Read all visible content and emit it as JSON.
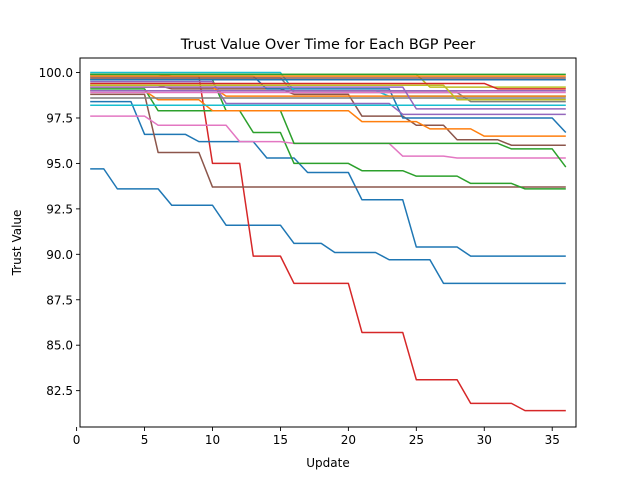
{
  "chart_data": {
    "type": "line",
    "title": "Trust Value Over Time for Each BGP Peer",
    "xlabel": "Update",
    "ylabel": "Trust Value",
    "xlim": [
      0.25,
      36.75
    ],
    "ylim": [
      80.5,
      100.8
    ],
    "xticks": [
      0,
      5,
      10,
      15,
      20,
      25,
      30,
      35
    ],
    "xtick_labels": [
      "0",
      "5",
      "10",
      "15",
      "20",
      "25",
      "30",
      "35"
    ],
    "yticks": [
      82.5,
      85.0,
      87.5,
      90.0,
      92.5,
      95.0,
      97.5,
      100.0
    ],
    "ytick_labels": [
      "82.5",
      "85.0",
      "87.5",
      "90.0",
      "92.5",
      "95.0",
      "97.5",
      "100.0"
    ],
    "grid": false,
    "legend": "none",
    "series": [
      {
        "color": "#1f77b4",
        "values": [
          94.7,
          94.7,
          93.6,
          93.6,
          93.6,
          93.6,
          92.7,
          92.7,
          92.7,
          92.7,
          91.6,
          91.6,
          91.6,
          91.6,
          91.6,
          90.6,
          90.6,
          90.6,
          90.1,
          90.1,
          90.1,
          90.1,
          89.7,
          89.7,
          89.7,
          89.7,
          88.4,
          88.4,
          88.4,
          88.4,
          88.4,
          88.4,
          88.4,
          88.4,
          88.4,
          88.4
        ]
      },
      {
        "color": "#d62728",
        "values": [
          99.9,
          99.9,
          99.9,
          99.9,
          99.9,
          99.9,
          99.8,
          99.8,
          99.8,
          95.0,
          95.0,
          95.0,
          89.9,
          89.9,
          89.9,
          88.4,
          88.4,
          88.4,
          88.4,
          88.4,
          85.7,
          85.7,
          85.7,
          85.7,
          83.1,
          83.1,
          83.1,
          83.1,
          81.8,
          81.8,
          81.8,
          81.8,
          81.4,
          81.4,
          81.4,
          81.4
        ]
      },
      {
        "color": "#1f77b4",
        "values": [
          98.4,
          98.4,
          98.4,
          98.4,
          96.6,
          96.6,
          96.6,
          96.6,
          96.2,
          96.2,
          96.2,
          96.2,
          96.2,
          95.3,
          95.3,
          95.3,
          94.5,
          94.5,
          94.5,
          94.5,
          93.0,
          93.0,
          93.0,
          93.0,
          90.4,
          90.4,
          90.4,
          90.4,
          89.9,
          89.9,
          89.9,
          89.9,
          89.9,
          89.9,
          89.9,
          89.9
        ]
      },
      {
        "color": "#8c564b",
        "values": [
          98.8,
          98.8,
          98.8,
          98.8,
          98.8,
          95.6,
          95.6,
          95.6,
          95.6,
          93.7,
          93.7,
          93.7,
          93.7,
          93.7,
          93.7,
          93.7,
          93.7,
          93.7,
          93.7,
          93.7,
          93.7,
          93.7,
          93.7,
          93.7,
          93.7,
          93.7,
          93.7,
          93.7,
          93.7,
          93.7,
          93.7,
          93.7,
          93.7,
          93.7,
          93.7,
          93.7
        ]
      },
      {
        "color": "#2ca02c",
        "values": [
          99.1,
          99.1,
          99.1,
          99.1,
          99.1,
          97.9,
          97.9,
          97.9,
          97.9,
          97.9,
          97.9,
          97.9,
          96.7,
          96.7,
          96.7,
          95.0,
          95.0,
          95.0,
          95.0,
          95.0,
          94.6,
          94.6,
          94.6,
          94.6,
          94.3,
          94.3,
          94.3,
          94.3,
          93.9,
          93.9,
          93.9,
          93.9,
          93.6,
          93.6,
          93.6,
          93.6
        ]
      },
      {
        "color": "#e377c2",
        "values": [
          97.6,
          97.6,
          97.6,
          97.6,
          97.6,
          97.1,
          97.1,
          97.1,
          97.1,
          97.1,
          97.1,
          96.2,
          96.2,
          96.2,
          96.2,
          96.1,
          96.1,
          96.1,
          96.1,
          96.1,
          96.1,
          96.1,
          96.1,
          95.4,
          95.4,
          95.4,
          95.4,
          95.3,
          95.3,
          95.3,
          95.3,
          95.3,
          95.3,
          95.3,
          95.3,
          95.3
        ]
      },
      {
        "color": "#2ca02c",
        "values": [
          99.6,
          99.6,
          99.6,
          99.6,
          99.6,
          99.6,
          99.6,
          99.6,
          99.6,
          99.6,
          97.9,
          97.9,
          97.9,
          97.9,
          97.9,
          96.1,
          96.1,
          96.1,
          96.1,
          96.1,
          96.1,
          96.1,
          96.1,
          96.1,
          96.1,
          96.1,
          96.1,
          96.1,
          96.1,
          96.1,
          96.1,
          95.8,
          95.8,
          95.8,
          95.8,
          94.8
        ]
      },
      {
        "color": "#8c564b",
        "values": [
          99.3,
          99.3,
          99.3,
          99.3,
          99.3,
          99.3,
          99.1,
          99.1,
          99.1,
          99.1,
          99.1,
          99.1,
          99.1,
          99.1,
          99.1,
          98.8,
          98.8,
          98.8,
          98.8,
          98.8,
          97.6,
          97.6,
          97.6,
          97.6,
          97.1,
          97.1,
          97.1,
          96.3,
          96.3,
          96.3,
          96.3,
          96.0,
          96.0,
          96.0,
          96.0,
          96.0
        ]
      },
      {
        "color": "#ff7f0e",
        "values": [
          99.0,
          99.0,
          99.0,
          99.0,
          99.0,
          98.5,
          98.5,
          98.5,
          98.5,
          97.9,
          97.9,
          97.9,
          97.9,
          97.9,
          97.9,
          97.9,
          97.9,
          97.9,
          97.9,
          97.9,
          97.3,
          97.3,
          97.3,
          97.3,
          97.3,
          96.9,
          96.9,
          96.9,
          96.9,
          96.5,
          96.5,
          96.5,
          96.5,
          96.5,
          96.5,
          96.5
        ]
      },
      {
        "color": "#1f77b4",
        "values": [
          99.8,
          99.8,
          99.8,
          99.8,
          99.8,
          99.8,
          99.8,
          99.8,
          99.8,
          99.8,
          99.8,
          99.8,
          99.8,
          99.1,
          99.1,
          99.1,
          99.1,
          99.1,
          99.1,
          99.1,
          99.1,
          99.1,
          99.1,
          97.5,
          97.5,
          97.5,
          97.5,
          97.5,
          97.5,
          97.5,
          97.5,
          97.5,
          97.5,
          97.5,
          97.5,
          96.7
        ]
      },
      {
        "color": "#9467bd",
        "values": [
          99.5,
          99.5,
          99.5,
          99.5,
          99.5,
          99.5,
          99.5,
          99.5,
          99.5,
          99.5,
          98.3,
          98.3,
          98.3,
          98.3,
          98.3,
          98.3,
          98.3,
          98.3,
          98.3,
          98.3,
          98.3,
          98.3,
          98.3,
          97.7,
          97.7,
          97.7,
          97.7,
          97.7,
          97.7,
          97.7,
          97.7,
          97.7,
          97.7,
          97.7,
          97.7,
          97.7
        ]
      },
      {
        "color": "#7f7f7f",
        "values": [
          99.7,
          99.7,
          99.7,
          99.7,
          99.7,
          99.7,
          99.7,
          99.7,
          99.7,
          99.7,
          99.7,
          99.7,
          99.7,
          99.7,
          99.7,
          98.9,
          98.9,
          98.9,
          98.9,
          98.9,
          98.9,
          98.9,
          98.9,
          98.9,
          98.9,
          98.9,
          98.9,
          98.9,
          98.4,
          98.4,
          98.4,
          98.4,
          98.4,
          98.4,
          98.4,
          98.4
        ]
      },
      {
        "color": "#bcbd22",
        "values": [
          99.9,
          99.9,
          99.9,
          99.9,
          99.9,
          99.9,
          99.9,
          99.9,
          99.9,
          99.9,
          99.9,
          99.9,
          99.9,
          99.9,
          99.9,
          99.9,
          99.9,
          99.9,
          99.9,
          99.9,
          99.9,
          99.9,
          99.9,
          99.9,
          99.9,
          99.2,
          99.2,
          99.2,
          99.2,
          99.2,
          99.2,
          99.2,
          99.2,
          99.2,
          99.2,
          99.2
        ]
      },
      {
        "color": "#17becf",
        "values": [
          100.0,
          100.0,
          100.0,
          100.0,
          100.0,
          100.0,
          100.0,
          100.0,
          100.0,
          100.0,
          100.0,
          100.0,
          100.0,
          100.0,
          100.0,
          99.0,
          99.0,
          99.0,
          99.0,
          99.0,
          99.0,
          99.0,
          98.7,
          98.7,
          98.7,
          98.7,
          98.7,
          98.7,
          98.7,
          98.7,
          98.7,
          98.7,
          98.7,
          98.7,
          98.7,
          98.7
        ]
      },
      {
        "color": "#2ca02c",
        "values": [
          99.9,
          99.9,
          99.9,
          99.9,
          99.9,
          99.9,
          99.9,
          99.9,
          99.9,
          99.9,
          99.9,
          99.9,
          99.9,
          99.9,
          99.9,
          99.9,
          99.9,
          99.9,
          99.9,
          99.9,
          99.9,
          99.9,
          99.9,
          99.9,
          99.9,
          99.9,
          99.9,
          99.9,
          99.9,
          99.9,
          99.9,
          99.9,
          99.9,
          99.9,
          99.9,
          99.9
        ]
      },
      {
        "color": "#d62728",
        "values": [
          99.4,
          99.4,
          99.4,
          99.4,
          99.4,
          99.4,
          99.4,
          99.4,
          99.4,
          99.4,
          99.4,
          99.4,
          99.4,
          99.4,
          99.4,
          99.4,
          99.4,
          99.4,
          99.4,
          99.4,
          99.4,
          99.4,
          99.4,
          99.4,
          99.4,
          99.4,
          99.4,
          99.4,
          99.4,
          99.4,
          99.1,
          99.1,
          99.1,
          99.1,
          99.1,
          99.1
        ]
      },
      {
        "color": "#ff7f0e",
        "values": [
          99.2,
          99.2,
          99.2,
          99.2,
          99.2,
          99.2,
          99.2,
          99.2,
          99.2,
          99.2,
          98.7,
          98.7,
          98.7,
          98.7,
          98.7,
          98.7,
          98.7,
          98.7,
          98.7,
          98.7,
          98.7,
          98.7,
          98.7,
          98.7,
          98.7,
          98.7,
          98.7,
          98.7,
          98.7,
          98.7,
          98.7,
          98.7,
          98.7,
          98.7,
          98.7,
          98.7
        ]
      },
      {
        "color": "#e377c2",
        "values": [
          98.9,
          98.9,
          98.9,
          98.9,
          98.9,
          98.9,
          98.9,
          98.9,
          98.9,
          98.9,
          98.9,
          98.9,
          98.9,
          98.9,
          98.9,
          98.9,
          98.9,
          98.9,
          98.9,
          98.9,
          98.9,
          98.9,
          98.9,
          98.9,
          98.9,
          98.9,
          98.9,
          98.9,
          98.9,
          98.9,
          98.9,
          98.9,
          98.9,
          98.9,
          98.9,
          98.9
        ]
      },
      {
        "color": "#9467bd",
        "values": [
          99.0,
          99.0,
          99.0,
          99.0,
          99.0,
          99.0,
          99.0,
          99.0,
          99.0,
          99.0,
          99.0,
          99.0,
          99.0,
          99.0,
          99.0,
          99.0,
          99.0,
          99.0,
          99.0,
          99.0,
          99.0,
          99.0,
          99.0,
          99.0,
          99.0,
          99.0,
          99.0,
          99.0,
          99.0,
          99.0,
          99.0,
          99.0,
          99.0,
          99.0,
          99.0,
          99.0
        ]
      },
      {
        "color": "#8c564b",
        "values": [
          99.7,
          99.7,
          99.7,
          99.7,
          99.7,
          99.7,
          99.7,
          99.7,
          99.7,
          99.7,
          99.7,
          99.7,
          99.7,
          99.7,
          99.7,
          99.7,
          99.7,
          99.7,
          99.7,
          99.7,
          99.7,
          99.7,
          99.7,
          99.7,
          99.7,
          99.7,
          99.7,
          99.7,
          99.7,
          99.7,
          99.7,
          99.7,
          99.7,
          99.7,
          99.7,
          99.7
        ]
      },
      {
        "color": "#7f7f7f",
        "values": [
          98.6,
          98.6,
          98.6,
          98.6,
          98.6,
          98.6,
          98.6,
          98.6,
          98.6,
          98.6,
          98.6,
          98.6,
          98.6,
          98.6,
          98.6,
          98.6,
          98.6,
          98.6,
          98.6,
          98.6,
          98.6,
          98.6,
          98.6,
          98.6,
          98.6,
          98.6,
          98.6,
          98.6,
          98.6,
          98.6,
          98.6,
          98.6,
          98.6,
          98.6,
          98.6,
          98.6
        ]
      },
      {
        "color": "#bcbd22",
        "values": [
          99.3,
          99.3,
          99.3,
          99.3,
          99.3,
          99.3,
          99.3,
          99.3,
          99.3,
          99.3,
          99.3,
          99.3,
          99.3,
          99.3,
          99.3,
          99.3,
          99.3,
          99.3,
          99.3,
          99.3,
          99.3,
          99.3,
          99.3,
          99.3,
          99.3,
          99.3,
          99.3,
          98.5,
          98.5,
          98.5,
          98.5,
          98.5,
          98.5,
          98.5,
          98.5,
          98.5
        ]
      },
      {
        "color": "#17becf",
        "values": [
          98.2,
          98.2,
          98.2,
          98.2,
          98.2,
          98.2,
          98.2,
          98.2,
          98.2,
          98.2,
          98.2,
          98.2,
          98.2,
          98.2,
          98.2,
          98.2,
          98.2,
          98.2,
          98.2,
          98.2,
          98.2,
          98.2,
          98.2,
          98.2,
          98.2,
          98.2,
          98.2,
          98.2,
          98.2,
          98.2,
          98.2,
          98.2,
          98.2,
          98.2,
          98.2,
          98.2
        ]
      },
      {
        "color": "#1f77b4",
        "values": [
          99.6,
          99.6,
          99.6,
          99.6,
          99.6,
          99.6,
          99.6,
          99.6,
          99.6,
          99.6,
          99.6,
          99.6,
          99.6,
          99.6,
          99.6,
          99.6,
          99.6,
          99.6,
          99.6,
          99.6,
          99.6,
          99.6,
          99.6,
          99.6,
          99.6,
          99.6,
          99.6,
          99.6,
          99.6,
          99.6,
          99.6,
          99.6,
          99.6,
          99.6,
          99.6,
          99.6
        ]
      },
      {
        "color": "#ff7f0e",
        "values": [
          99.8,
          99.8,
          99.8,
          99.8,
          99.8,
          99.8,
          99.8,
          99.8,
          99.8,
          99.8,
          99.8,
          99.8,
          99.8,
          99.8,
          99.8,
          99.8,
          99.8,
          99.8,
          99.8,
          99.8,
          99.8,
          99.8,
          99.8,
          99.8,
          99.8,
          99.8,
          99.8,
          99.8,
          99.8,
          99.8,
          99.8,
          99.8,
          99.8,
          99.8,
          99.8,
          99.8
        ]
      },
      {
        "color": "#9467bd",
        "values": [
          99.2,
          99.2,
          99.2,
          99.2,
          99.2,
          99.2,
          99.2,
          99.2,
          99.2,
          99.2,
          99.2,
          99.2,
          99.2,
          99.2,
          99.2,
          99.2,
          99.2,
          99.2,
          99.2,
          99.2,
          99.2,
          99.2,
          99.2,
          99.2,
          98.0,
          98.0,
          98.0,
          98.0,
          98.0,
          98.0,
          98.0,
          98.0,
          98.0,
          98.0,
          98.0,
          98.0
        ]
      }
    ]
  }
}
